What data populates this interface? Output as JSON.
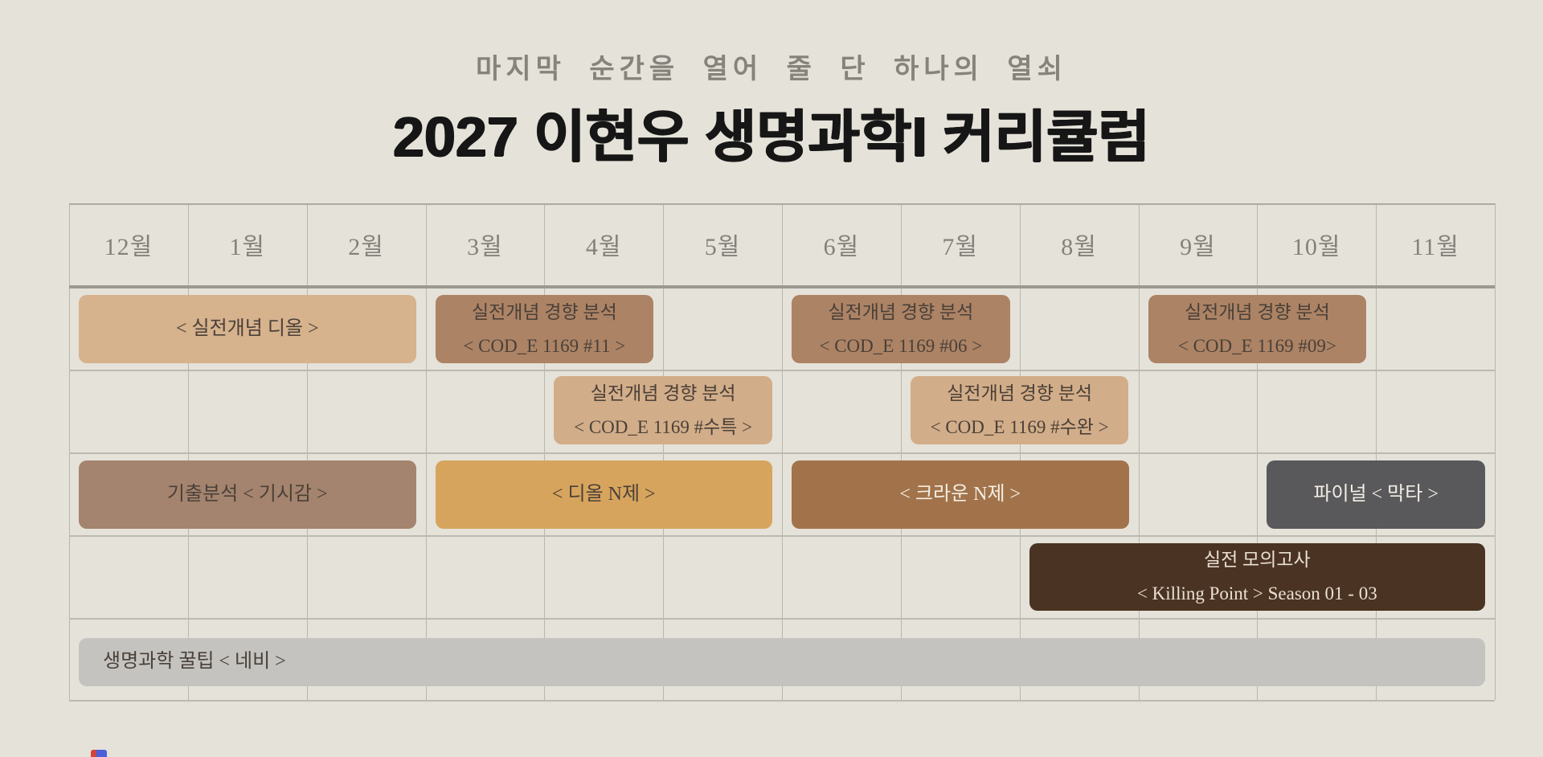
{
  "header": {
    "subtitle": "마지막 순간을 열어 줄 단 하나의 열쇠",
    "title": "2027 이현우 생명과학I 커리큘럼"
  },
  "timeline": {
    "months": [
      "12월",
      "1월",
      "2월",
      "3월",
      "4월",
      "5월",
      "6월",
      "7월",
      "8월",
      "9월",
      "10월",
      "11월"
    ],
    "palette": {
      "background": "#e5e2d9",
      "grid_line": "#bcb9b0",
      "grid_line_vertical": "#b9b6ad",
      "grid_line_top": "#adaaa2",
      "grid_line_heavy": "#9c9992",
      "month_text": "#82827b",
      "subtitle_text": "#85847c",
      "title_text": "#161616",
      "tan": "#d6b28d",
      "light_tan": "#d2ad89",
      "brown": "#ac8365",
      "mauve_brown": "#a4846e",
      "orange_tan": "#d7a45e",
      "crown_brown": "#a2734b",
      "dark_gray": "#59585b",
      "dark_brown": "#4a3323",
      "light_gray": "#c4c3c0",
      "dark_text": "#4a4038",
      "light_text": "#f3eee4",
      "cream_text": "#eae0d3",
      "bottom_sliver_red": "#d0453a",
      "bottom_sliver_blue": "#4a5fd8"
    },
    "bars": [
      {
        "id": "concept-dior",
        "row": 0,
        "start": "12월",
        "end": "2월",
        "lines": [
          "< 실전개념 디올 >"
        ],
        "fill": "tan",
        "text": "dark_text"
      },
      {
        "id": "cod-e-11",
        "row": 0,
        "start": "3월",
        "end": "4월",
        "lines": [
          "실전개념 경향 분석",
          "< COD_E 1169 #11 >"
        ],
        "fill": "brown",
        "text": "dark_text"
      },
      {
        "id": "cod-e-06",
        "row": 0,
        "start": "6월",
        "end": "7월",
        "lines": [
          "실전개념 경향 분석",
          "< COD_E 1169 #06 >"
        ],
        "fill": "brown",
        "text": "dark_text"
      },
      {
        "id": "cod-e-09",
        "row": 0,
        "start": "9월",
        "end": "10월",
        "lines": [
          "실전개념 경향 분석",
          "< COD_E 1169 #09>"
        ],
        "fill": "brown",
        "text": "dark_text"
      },
      {
        "id": "cod-e-suteuk",
        "row": 1,
        "start": "4월",
        "end": "5월",
        "lines": [
          "실전개념 경향 분석",
          "< COD_E 1169 #수특 >"
        ],
        "fill": "light_tan",
        "text": "dark_text"
      },
      {
        "id": "cod-e-suwan",
        "row": 1,
        "start": "7월",
        "end": "8월",
        "lines": [
          "실전개념 경향 분석",
          "< COD_E 1169 #수완 >"
        ],
        "fill": "light_tan",
        "text": "dark_text"
      },
      {
        "id": "gichul-gisigam",
        "row": 2,
        "start": "12월",
        "end": "2월",
        "lines": [
          "기출분석 < 기시감 >"
        ],
        "fill": "mauve_brown",
        "text": "dark_text"
      },
      {
        "id": "dior-n-je",
        "row": 2,
        "start": "3월",
        "end": "5월",
        "lines": [
          "< 디올 N제 >"
        ],
        "fill": "orange_tan",
        "text": "dark_text"
      },
      {
        "id": "crown-n-je",
        "row": 2,
        "start": "6월",
        "end": "8월",
        "lines": [
          "< 크라운 N제 >"
        ],
        "fill": "crown_brown",
        "text": "light_text"
      },
      {
        "id": "final-makta",
        "row": 2,
        "start": "10월",
        "end": "11월",
        "lines": [
          "파이널 < 막타 >"
        ],
        "fill": "dark_gray",
        "text": "light_text"
      },
      {
        "id": "killing-point",
        "row": 3,
        "start": "8월",
        "end": "11월",
        "lines": [
          "실전 모의고사",
          "< Killing Point > Season 01 - 03"
        ],
        "fill": "dark_brown",
        "text": "cream_text"
      },
      {
        "id": "navi-tips",
        "row": 4,
        "start": "12월",
        "end": "11월",
        "lines": [
          "생명과학 꿀팁 < 네비 >"
        ],
        "fill": "light_gray",
        "text": "dark_text",
        "align": "left"
      }
    ]
  },
  "chart_data": {
    "type": "bar",
    "subtype": "gantt-timeline",
    "title": "2027 이현우 생명과학I 커리큘럼",
    "subtitle": "마지막 순간을 열어 줄 단 하나의 열쇠",
    "x_categories": [
      "12월",
      "1월",
      "2월",
      "3월",
      "4월",
      "5월",
      "6월",
      "7월",
      "8월",
      "9월",
      "10월",
      "11월"
    ],
    "grid": true,
    "legend": false,
    "series": [
      {
        "name": "< 실전개념 디올 >",
        "track": 1,
        "start": "12월",
        "end": "2월",
        "color": "#d6b28d"
      },
      {
        "name": "실전개념 경향 분석 < COD_E 1169 #11 >",
        "track": 1,
        "start": "3월",
        "end": "4월",
        "color": "#ac8365"
      },
      {
        "name": "실전개념 경향 분석 < COD_E 1169 #06 >",
        "track": 1,
        "start": "6월",
        "end": "7월",
        "color": "#ac8365"
      },
      {
        "name": "실전개념 경향 분석 < COD_E 1169 #09>",
        "track": 1,
        "start": "9월",
        "end": "10월",
        "color": "#ac8365"
      },
      {
        "name": "실전개념 경향 분석 < COD_E 1169 #수특 >",
        "track": 2,
        "start": "4월",
        "end": "5월",
        "color": "#d2ad89"
      },
      {
        "name": "실전개념 경향 분석 < COD_E 1169 #수완 >",
        "track": 2,
        "start": "7월",
        "end": "8월",
        "color": "#d2ad89"
      },
      {
        "name": "기출분석 < 기시감 >",
        "track": 3,
        "start": "12월",
        "end": "2월",
        "color": "#a4846e"
      },
      {
        "name": "< 디올 N제 >",
        "track": 3,
        "start": "3월",
        "end": "5월",
        "color": "#d7a45e"
      },
      {
        "name": "< 크라운 N제 >",
        "track": 3,
        "start": "6월",
        "end": "8월",
        "color": "#a2734b"
      },
      {
        "name": "파이널 < 막타 >",
        "track": 3,
        "start": "10월",
        "end": "11월",
        "color": "#59585b"
      },
      {
        "name": "실전 모의고사 < Killing Point > Season 01 - 03",
        "track": 4,
        "start": "8월",
        "end": "11월",
        "color": "#4a3323"
      },
      {
        "name": "생명과학 꿀팁 < 네비 >",
        "track": 5,
        "start": "12월",
        "end": "11월",
        "color": "#c4c3c0"
      }
    ]
  }
}
